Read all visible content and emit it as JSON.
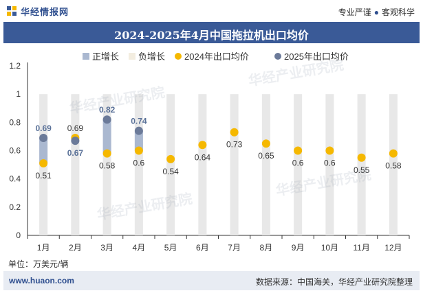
{
  "header": {
    "brand": "华经情报网",
    "slogan_left": "专业严谨",
    "slogan_right": "客观科学"
  },
  "title": "2024-2025年4月中国拖拉机出口均价",
  "unit_label": "单位：万美元/辆",
  "footer": {
    "site": "www.huaon.com",
    "source": "数据来源：中国海关，华经产业研究院整理"
  },
  "watermarks": [
    "华经产业研究院",
    "www.huaon.com"
  ],
  "colors": {
    "bar": "#e8e8e8",
    "positive": "#aab8d0",
    "s2024": "#f5b800",
    "s2025": "#6b7a99",
    "label2025": "#5a7198",
    "brand": "#3a5a97"
  },
  "chart_data": {
    "type": "line",
    "categories": [
      "1月",
      "2月",
      "3月",
      "4月",
      "5月",
      "6月",
      "7月",
      "8月",
      "9月",
      "10月",
      "11月",
      "12月"
    ],
    "series": [
      {
        "name": "2024年出口均价",
        "values": [
          0.51,
          0.69,
          0.58,
          0.6,
          0.54,
          0.64,
          0.73,
          0.65,
          0.6,
          0.6,
          0.55,
          0.58
        ]
      },
      {
        "name": "2025年出口均价",
        "values": [
          0.69,
          0.67,
          0.82,
          0.74,
          null,
          null,
          null,
          null,
          null,
          null,
          null,
          null
        ]
      }
    ],
    "legend": [
      "正增长",
      "负增长",
      "2024年出口均价",
      "2025年出口均价"
    ],
    "legend_position": "top",
    "yticks": [
      "0",
      "0.2",
      "0.4",
      "0.6",
      "0.8",
      "1",
      "1.2"
    ],
    "ylim": [
      0,
      1.2
    ],
    "grid": false
  }
}
